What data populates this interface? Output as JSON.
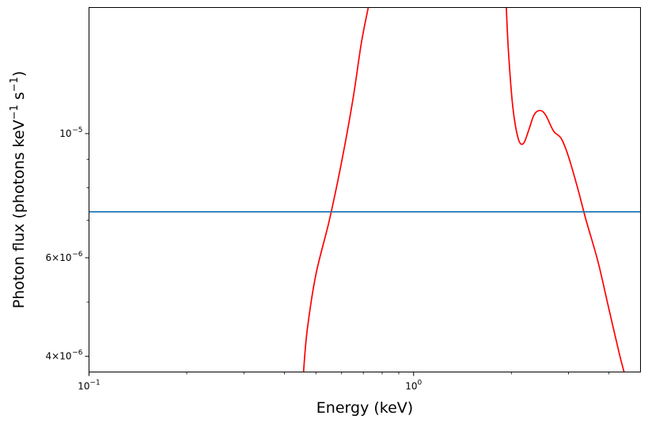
{
  "chart_data": {
    "type": "line",
    "xlabel": "Energy (keV)",
    "ylabel_main": "Photon flux (photons keV",
    "ylabel_exp1": "−1",
    "ylabel_mid": " s",
    "ylabel_exp2": "−1",
    "ylabel_end": ")",
    "x_scale": "log",
    "y_scale": "log",
    "xlim": [
      0.1,
      5.0
    ],
    "ylim": [
      3.75e-06,
      1.68e-05
    ],
    "x_ticks": [
      {
        "value": 0.1,
        "base": "10",
        "exp": "−1"
      },
      {
        "value": 1.0,
        "base": "10",
        "exp": "0"
      }
    ],
    "y_ticks": [
      {
        "value": 4e-06,
        "mant": "4×10",
        "exp": "−6"
      },
      {
        "value": 6e-06,
        "mant": "6×10",
        "exp": "−6"
      },
      {
        "value": 1e-05,
        "mant": "10",
        "exp": "−5"
      }
    ],
    "x_minor_ticks": [
      0.2,
      0.3,
      0.4,
      0.5,
      0.6,
      0.7,
      0.8,
      0.9,
      2,
      3,
      4
    ],
    "y_minor_ticks": [
      5e-06,
      7e-06,
      8e-06,
      9e-06
    ],
    "series": [
      {
        "color": "#ff0000",
        "segments": [
          [
            [
              0.458,
              3.75e-06
            ],
            [
              0.47,
              4.45e-06
            ],
            [
              0.5,
              5.6e-06
            ],
            [
              0.55,
              7e-06
            ],
            [
              0.6,
              8.9e-06
            ],
            [
              0.65,
              1.15e-05
            ],
            [
              0.69,
              1.45e-05
            ],
            [
              0.725,
              1.68e-05
            ]
          ],
          [
            [
              1.93,
              1.68e-05
            ],
            [
              1.96,
              1.4e-05
            ],
            [
              2.02,
              1.12e-05
            ],
            [
              2.1,
              9.8e-06
            ],
            [
              2.18,
              9.6e-06
            ],
            [
              2.27,
              1.02e-05
            ],
            [
              2.35,
              1.08e-05
            ],
            [
              2.45,
              1.1e-05
            ],
            [
              2.55,
              1.08e-05
            ],
            [
              2.7,
              1.01e-05
            ],
            [
              2.85,
              9.8e-06
            ],
            [
              3.0,
              9.1e-06
            ],
            [
              3.2,
              8e-06
            ],
            [
              3.4,
              7e-06
            ],
            [
              3.7,
              5.9e-06
            ],
            [
              4.0,
              4.85e-06
            ],
            [
              4.3,
              4.05e-06
            ],
            [
              4.45,
              3.75e-06
            ]
          ]
        ]
      },
      {
        "color": "#1f77b4",
        "segments": [
          [
            [
              0.1,
              7.25e-06
            ],
            [
              5.0,
              7.25e-06
            ]
          ]
        ]
      }
    ]
  }
}
